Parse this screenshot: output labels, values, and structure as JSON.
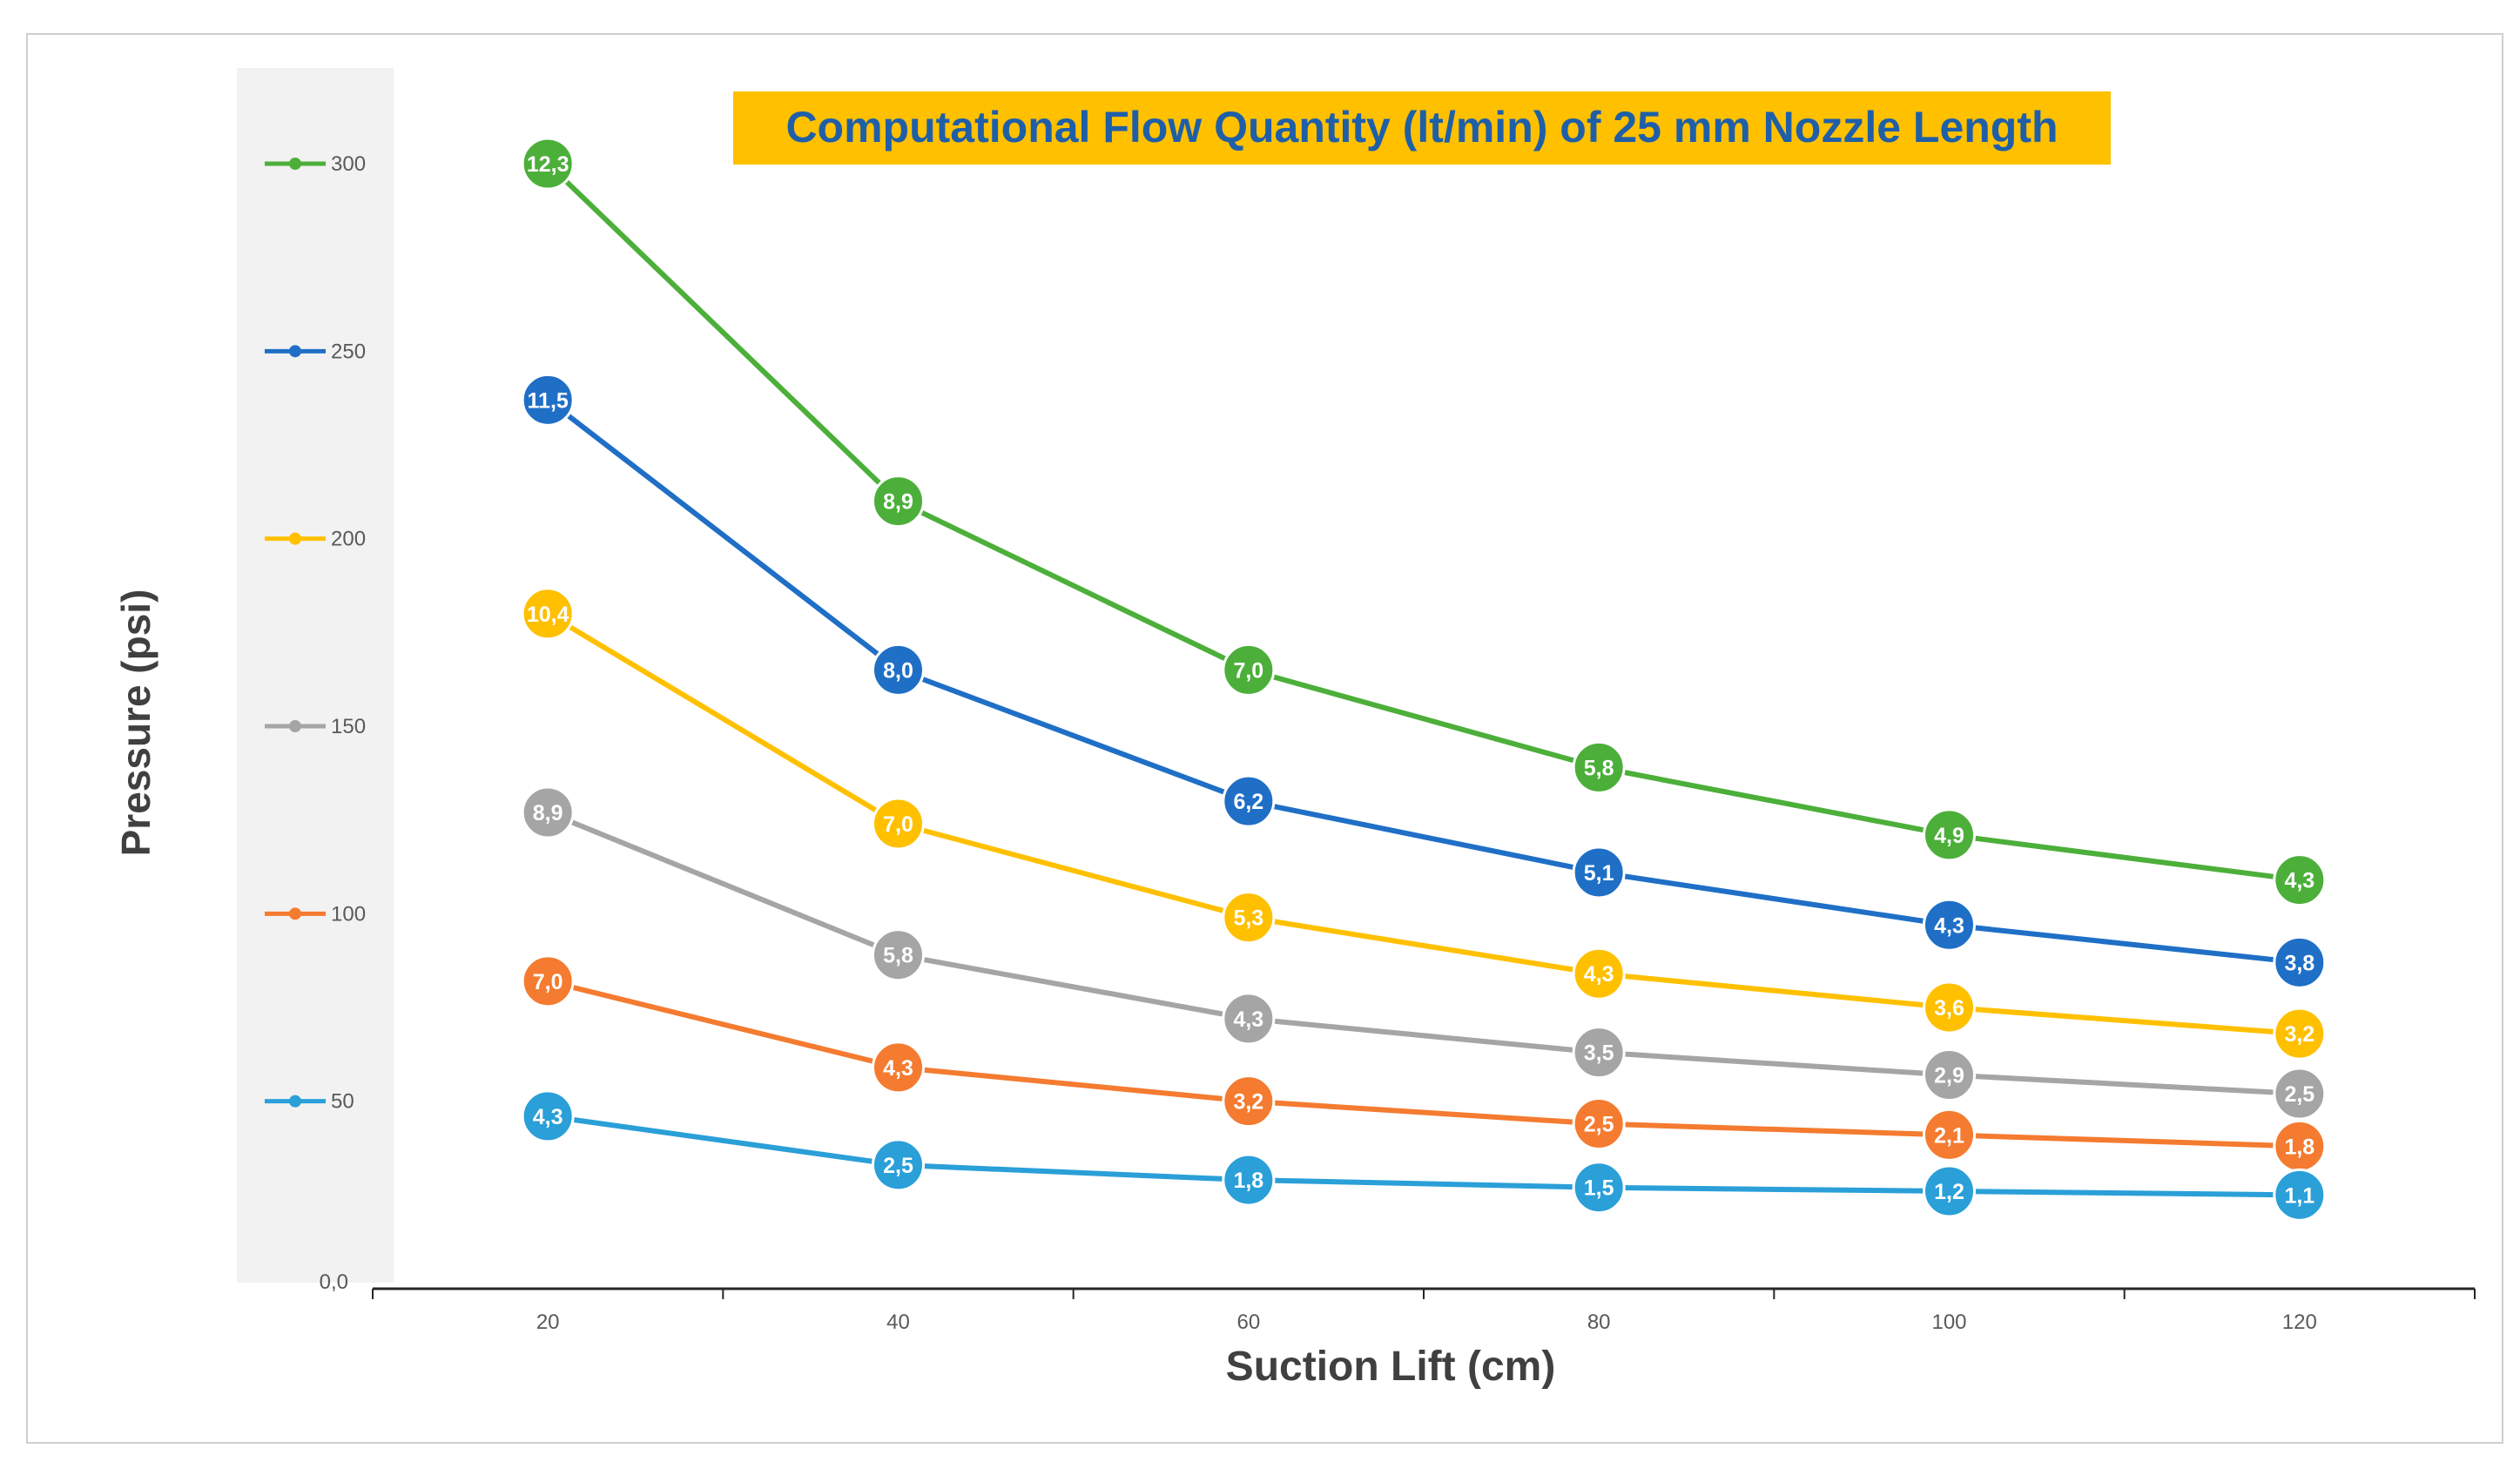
{
  "chart_data": {
    "type": "line",
    "title": "Computational Flow Quantity (lt/min) of 25 mm Nozzle Length",
    "xlabel": "Suction Lift (cm)",
    "ylabel": "Pressure (psi)",
    "x": [
      20,
      40,
      60,
      80,
      100,
      120
    ],
    "x_tick_labels": [
      "20",
      "40",
      "60",
      "80",
      "100",
      "120"
    ],
    "xlim": [
      10,
      130
    ],
    "y_baseline_label": "0,0",
    "ylim": [
      0,
      310
    ],
    "grid": false,
    "legend_position": "left",
    "colors": {
      "title_background": "#ffc000",
      "title_text": "#1f5fa8",
      "axis_text": "#404040",
      "axis_line": "#262626",
      "legend_panel": "#f2f2f2"
    },
    "series": [
      {
        "name": "300",
        "color": "#4caf3a",
        "values": [
          300,
          210,
          165,
          139,
          121,
          109
        ],
        "point_labels": [
          "12,3",
          "8,9",
          "7,0",
          "5,8",
          "4,9",
          "4,3"
        ]
      },
      {
        "name": "250",
        "color": "#1f6fc6",
        "values": [
          237,
          165,
          130,
          111,
          97,
          87
        ],
        "point_labels": [
          "11,5",
          "8,0",
          "6,2",
          "5,1",
          "4,3",
          "3,8"
        ]
      },
      {
        "name": "200",
        "color": "#ffc000",
        "values": [
          180,
          124,
          99,
          84,
          75,
          68
        ],
        "point_labels": [
          "10,4",
          "7,0",
          "5,3",
          "4,3",
          "3,6",
          "3,2"
        ]
      },
      {
        "name": "150",
        "color": "#a5a5a5",
        "values": [
          127,
          89,
          72,
          63,
          57,
          52
        ],
        "point_labels": [
          "8,9",
          "5,8",
          "4,3",
          "3,5",
          "2,9",
          "2,5"
        ]
      },
      {
        "name": "100",
        "color": "#f47b30",
        "values": [
          82,
          59,
          50,
          44,
          41,
          38
        ],
        "point_labels": [
          "7,0",
          "4,3",
          "3,2",
          "2,5",
          "2,1",
          "1,8"
        ]
      },
      {
        "name": "50",
        "color": "#2a9fd8",
        "values": [
          46,
          33,
          29,
          27,
          26,
          25
        ],
        "point_labels": [
          "4,3",
          "2,5",
          "1,8",
          "1,5",
          "1,2",
          "1,1"
        ]
      }
    ]
  }
}
